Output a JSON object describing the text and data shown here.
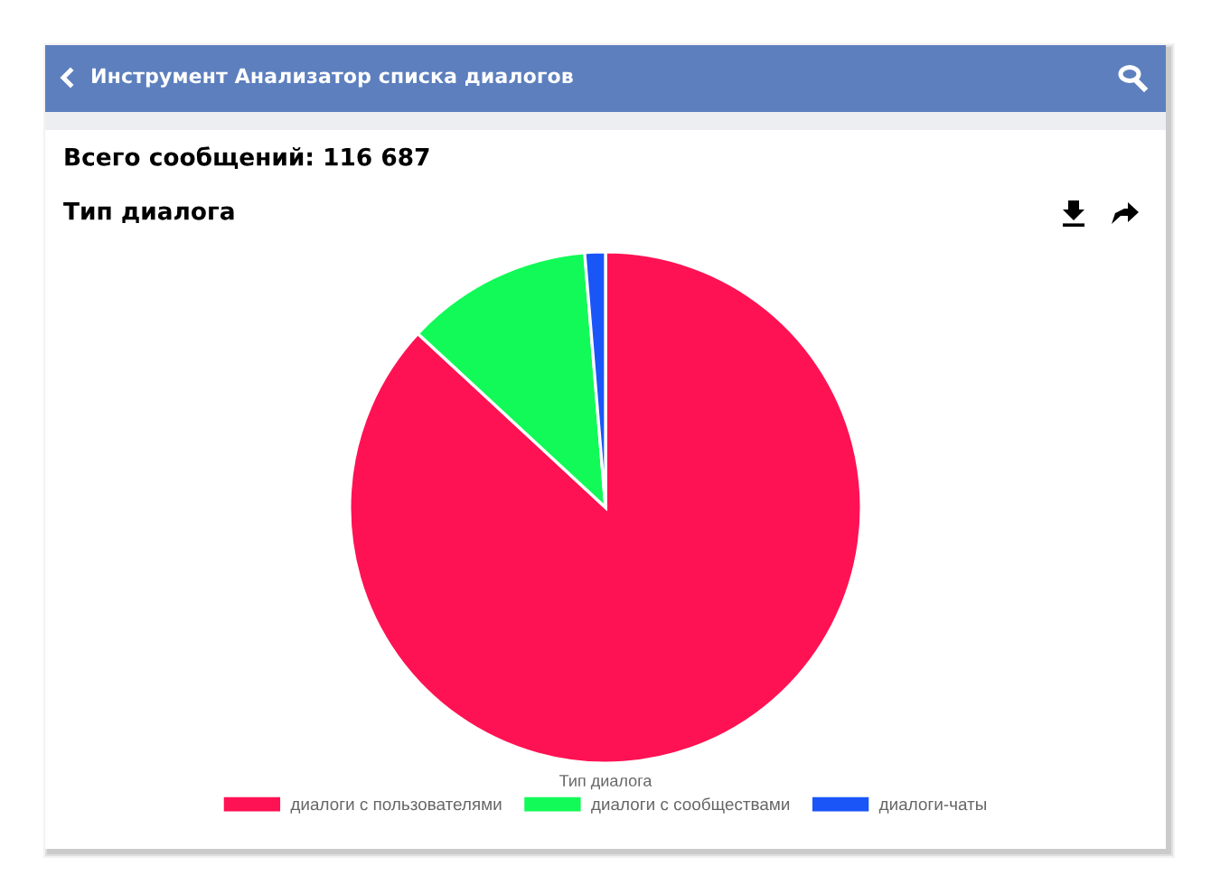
{
  "chart_data": {
    "type": "pie",
    "title": "Тип диалога",
    "xlabel": "Тип диалога",
    "annotations": [
      "Инструмент Анализатор списка диалогов",
      "Всего сообщений: 116 687"
    ],
    "categories": [
      "диалоги с пользователями",
      "диалоги с сообществами",
      "диалоги-чаты"
    ],
    "values": [
      86.9,
      11.8,
      1.3
    ],
    "colors": [
      "#ff1253",
      "#12fa58",
      "#1a55f8"
    ],
    "legend": "bottom"
  }
}
